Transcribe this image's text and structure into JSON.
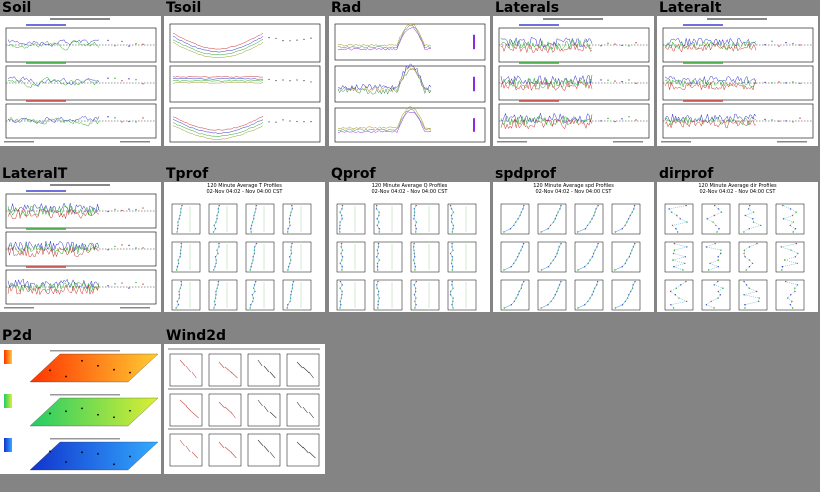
{
  "thumbnails": [
    {
      "label": "Soil",
      "type": "timeseries3"
    },
    {
      "label": "Tsoil",
      "type": "tsoil"
    },
    {
      "label": "Rad",
      "type": "rad"
    },
    {
      "label": "Laterals",
      "type": "lateral"
    },
    {
      "label": "Lateralt",
      "type": "lateralt"
    },
    {
      "label": "LateralT",
      "type": "lateral"
    },
    {
      "label": "Tprof",
      "type": "profile",
      "title1": "120 Minute Average T Profiles",
      "title2": "02-Nov 04:02 - Nov 04:00 CST"
    },
    {
      "label": "Qprof",
      "type": "profile",
      "title1": "120 Minute Average Q Profiles",
      "title2": "02-Nov 04:02 - Nov 04:00 CST"
    },
    {
      "label": "spdprof",
      "type": "profile",
      "title1": "120 Minute Average spd Profiles",
      "title2": "02-Nov 04:02 - Nov 04:00 CST"
    },
    {
      "label": "dirprof",
      "type": "profile",
      "title1": "120 Minute Average dir Profiles",
      "title2": "02-Nov 04:02 - Nov 04:00 CST"
    },
    {
      "label": "P2d",
      "type": "p2d"
    },
    {
      "label": "Wind2d",
      "type": "wind2d"
    }
  ],
  "colors": {
    "background": "#848484",
    "panel": "#ffffff"
  }
}
